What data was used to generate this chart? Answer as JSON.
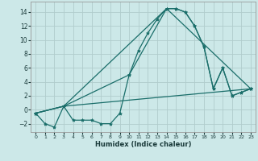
{
  "title": "",
  "xlabel": "Humidex (Indice chaleur)",
  "bg_color": "#cce8e8",
  "grid_color": "#b0cccc",
  "line_color": "#1a6e6a",
  "xlim": [
    -0.5,
    23.5
  ],
  "ylim": [
    -3.2,
    15.5
  ],
  "xticks": [
    0,
    1,
    2,
    3,
    4,
    5,
    6,
    7,
    8,
    9,
    10,
    11,
    12,
    13,
    14,
    15,
    16,
    17,
    18,
    19,
    20,
    21,
    22,
    23
  ],
  "yticks": [
    -2,
    0,
    2,
    4,
    6,
    8,
    10,
    12,
    14
  ],
  "series": [
    {
      "x": [
        0,
        1,
        2,
        3,
        4,
        5,
        6,
        7,
        8,
        9,
        10,
        11,
        12,
        13,
        14,
        15,
        16,
        17,
        18,
        19,
        20,
        21,
        22,
        23
      ],
      "y": [
        -0.5,
        -2,
        -2.5,
        0.5,
        -1.5,
        -1.5,
        -1.5,
        -2,
        -2,
        -0.5,
        5,
        8.5,
        11,
        13,
        14.5,
        14.5,
        14,
        12,
        9,
        3,
        6,
        2,
        2.5,
        3
      ]
    },
    {
      "x": [
        0,
        3,
        10,
        14,
        15,
        16,
        17,
        18,
        19,
        20,
        21,
        22,
        23
      ],
      "y": [
        -0.5,
        0.5,
        5,
        14.5,
        14.5,
        14,
        12,
        9,
        3,
        6,
        2,
        2.5,
        3
      ]
    },
    {
      "x": [
        0,
        3,
        23
      ],
      "y": [
        -0.5,
        0.5,
        3
      ]
    },
    {
      "x": [
        0,
        3,
        14,
        23
      ],
      "y": [
        -0.5,
        0.5,
        14.5,
        3
      ]
    }
  ]
}
